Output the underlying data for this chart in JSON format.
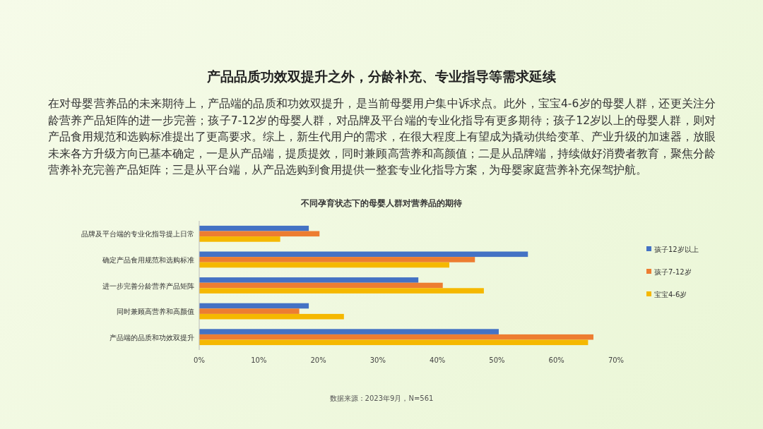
{
  "chart_data": {
    "type": "bar",
    "orientation": "horizontal",
    "title": "不同孕育状态下的母婴人群对营养品的期待",
    "annotations": [
      "产品品质功效双提升之外，分龄补充、专业指导等需求延续",
      "在对母婴营养品的未来期待上，产品端的品质和功效双提升，是当前母婴用户集中诉求点。此外，宝宝4-6岁的母婴人群，还更关注分龄营养产品矩阵的进一步完善；孩子7-12岁的母婴人群，对品牌及平台端的专业化指导有更多期待；孩子12岁以上的母婴人群，则对产品食用规范和选购标准提出了更高要求。综上，新生代用户的需求，在很大程度上有望成为撬动供给变革、产业升级的加速器，放眼未来各方升级方向已基本确定，一是从产品端，提质提效，同时兼顾高营养和高颜值；二是从品牌端，持续做好消费者教育，聚焦分龄营养补充完善产品矩阵；三是从平台端，从产品选购到食用提供一整套专业化指导方案，为母婴家庭营养补充保驾护航。",
      "数据来源：2023年9月，N=561"
    ],
    "categories": [
      "品牌及平台端的专业化指导提上日常",
      "确定产品食用规范和选购标准",
      "进一步完善分龄营养产品矩阵",
      "同时兼顾高营养和高颜值",
      "产品端的品质和功效双提升"
    ],
    "series": [
      {
        "name": "孩子12岁以上",
        "color": "#4472c4",
        "values": [
          18.4,
          55.2,
          36.8,
          18.4,
          50.3
        ]
      },
      {
        "name": "孩子7-12岁",
        "color": "#ed7d31",
        "values": [
          20.2,
          46.3,
          40.9,
          16.8,
          66.2
        ]
      },
      {
        "name": "宝宝4-6岁",
        "color": "#f5b800",
        "values": [
          13.6,
          42.0,
          47.8,
          24.3,
          65.3
        ]
      }
    ],
    "xlim": [
      0,
      70
    ],
    "xticks": [
      {
        "value": 0,
        "label": "0%"
      },
      {
        "value": 10,
        "label": "10%"
      },
      {
        "value": 20,
        "label": "20%"
      },
      {
        "value": 30,
        "label": "30%"
      },
      {
        "value": 40,
        "label": "40%"
      },
      {
        "value": 50,
        "label": "50%"
      },
      {
        "value": 60,
        "label": "60%"
      },
      {
        "value": 70,
        "label": "70%"
      }
    ],
    "legend": "right",
    "grid": false
  }
}
